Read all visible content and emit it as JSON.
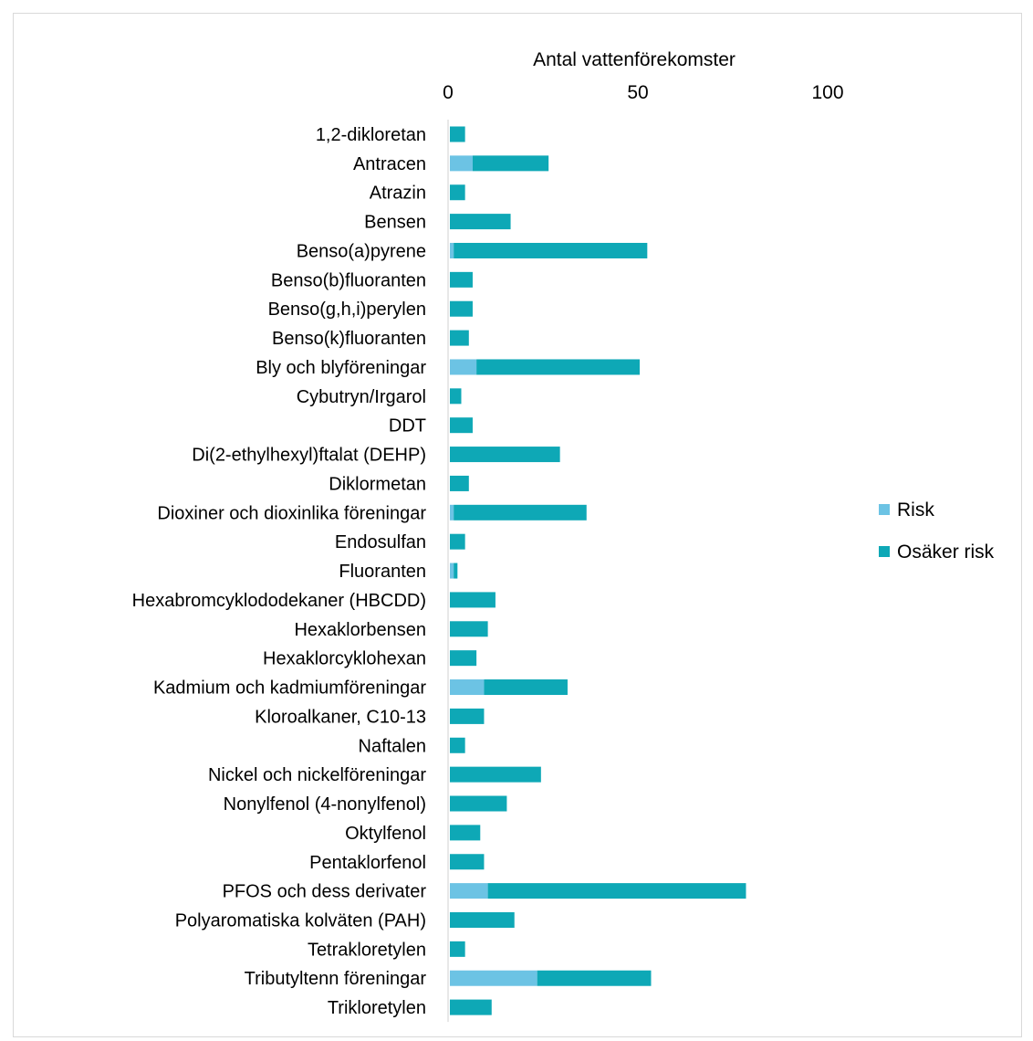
{
  "chart_data": {
    "type": "bar",
    "orientation": "horizontal",
    "stacked": true,
    "title": "",
    "xlabel": "Antal vattenförekomster",
    "ylabel": "",
    "xlim": [
      0,
      100
    ],
    "xticks": [
      0,
      50,
      100
    ],
    "axis_position": "top",
    "grid": false,
    "legend_position": "right",
    "categories": [
      "1,2-dikloretan",
      "Antracen",
      "Atrazin",
      "Bensen",
      "Benso(a)pyrene",
      "Benso(b)fluoranten",
      "Benso(g,h,i)perylen",
      "Benso(k)fluoranten",
      "Bly och blyföreningar",
      "Cybutryn/Irgarol",
      "DDT",
      "Di(2-ethylhexyl)ftalat (DEHP)",
      "Diklormetan",
      "Dioxiner och dioxinlika föreningar",
      "Endosulfan",
      "Fluoranten",
      "Hexabromcyklododekaner (HBCDD)",
      "Hexaklorbensen",
      "Hexaklorcyklohexan",
      "Kadmium och kadmiumföreningar",
      "Kloroalkaner, C10-13",
      "Naftalen",
      "Nickel och nickelföreningar",
      "Nonylfenol (4-nonylfenol)",
      "Oktylfenol",
      "Pentaklorfenol",
      "PFOS och dess derivater",
      "Polyaromatiska kolväten (PAH)",
      "Tetrakloretylen",
      "Tributyltenn föreningar",
      "Trikloretylen"
    ],
    "series": [
      {
        "name": "Risk",
        "color": "#6cc3e4",
        "values": [
          0,
          6,
          0,
          0,
          1,
          0,
          0,
          0,
          7,
          0,
          0,
          0,
          0,
          1,
          0,
          1,
          0,
          0,
          0,
          9,
          0,
          0,
          0,
          0,
          0,
          0,
          10,
          0,
          0,
          23,
          0
        ]
      },
      {
        "name": "Osäker risk",
        "color": "#0ea8b6",
        "values": [
          4,
          20,
          4,
          16,
          51,
          6,
          6,
          5,
          43,
          3,
          6,
          29,
          5,
          35,
          4,
          1,
          12,
          10,
          7,
          22,
          9,
          4,
          24,
          15,
          8,
          9,
          68,
          17,
          4,
          30,
          11
        ]
      }
    ]
  }
}
